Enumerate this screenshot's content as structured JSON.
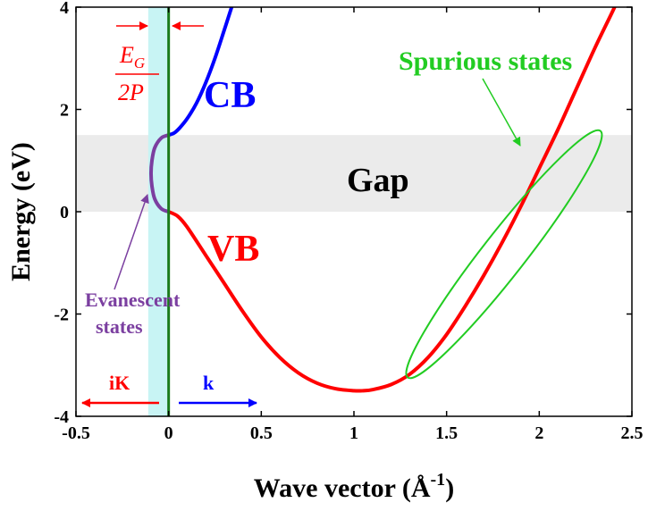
{
  "colors": {
    "cb": "#0000ff",
    "vb": "#ff0000",
    "evanescent": "#7b3fa0",
    "spurious": "#22cc22",
    "gap_fill": "#ebebeb",
    "cyan_band": "#c8f4f4",
    "k_zero_line": "#1a7a1a"
  },
  "chart_data": {
    "type": "line",
    "xlabel_main": "Wave vector (Å",
    "xlabel_sup": "-1",
    "xlabel_close": ")",
    "ylabel": "Energy (eV)",
    "xlim": [
      -0.5,
      2.5
    ],
    "ylim": [
      -4,
      4
    ],
    "x_ticks": [
      -0.5,
      0,
      0.5,
      1,
      1.5,
      2,
      2.5
    ],
    "x_tick_labels": [
      "-0.5",
      "0",
      "0.5",
      "1",
      "1.5",
      "2",
      "2.5"
    ],
    "y_ticks": [
      -4,
      -2,
      0,
      2,
      4
    ],
    "y_tick_labels": [
      "-4",
      "-2",
      "0",
      "2",
      "4"
    ],
    "gap_range": [
      0,
      1.5
    ],
    "cyan_band_range": [
      -0.11,
      0
    ],
    "series": [
      {
        "name": "CB",
        "points": [
          [
            0,
            1.5
          ],
          [
            0.03,
            1.54
          ],
          [
            0.06,
            1.64
          ],
          [
            0.1,
            1.82
          ],
          [
            0.15,
            2.12
          ],
          [
            0.2,
            2.52
          ],
          [
            0.25,
            3.0
          ],
          [
            0.3,
            3.55
          ],
          [
            0.34,
            4.0
          ]
        ]
      },
      {
        "name": "VB",
        "points": [
          [
            0,
            0
          ],
          [
            0.05,
            -0.09
          ],
          [
            0.1,
            -0.3
          ],
          [
            0.2,
            -0.85
          ],
          [
            0.3,
            -1.4
          ],
          [
            0.4,
            -1.95
          ],
          [
            0.5,
            -2.45
          ],
          [
            0.6,
            -2.85
          ],
          [
            0.7,
            -3.15
          ],
          [
            0.8,
            -3.35
          ],
          [
            0.9,
            -3.46
          ],
          [
            1.0,
            -3.5
          ],
          [
            1.05,
            -3.5
          ],
          [
            1.1,
            -3.48
          ],
          [
            1.2,
            -3.38
          ],
          [
            1.3,
            -3.18
          ],
          [
            1.4,
            -2.85
          ],
          [
            1.5,
            -2.4
          ],
          [
            1.6,
            -1.85
          ],
          [
            1.7,
            -1.25
          ],
          [
            1.8,
            -0.6
          ],
          [
            1.9,
            0.1
          ],
          [
            2.0,
            0.85
          ],
          [
            2.1,
            1.6
          ],
          [
            2.2,
            2.4
          ],
          [
            2.3,
            3.2
          ],
          [
            2.4,
            3.95
          ],
          [
            2.45,
            4.35
          ]
        ]
      },
      {
        "name": "Evanescent",
        "points": [
          [
            0,
            0
          ],
          [
            -0.04,
            0.06
          ],
          [
            -0.075,
            0.25
          ],
          [
            -0.09,
            0.5
          ],
          [
            -0.095,
            0.75
          ],
          [
            -0.09,
            1.0
          ],
          [
            -0.075,
            1.25
          ],
          [
            -0.04,
            1.44
          ],
          [
            0,
            1.5
          ]
        ]
      }
    ],
    "spurious_ellipse": {
      "cx": 1.81,
      "cy": -0.83,
      "rx_angle_pts": [
        [
          2.33,
          1.58
        ],
        [
          1.29,
          -3.24
        ]
      ],
      "ry_len": 0.3
    },
    "labels": {
      "cb": "CB",
      "vb": "VB",
      "gap": "Gap",
      "spurious": "Spurious states",
      "evanescent_line1": "Evanescent",
      "evanescent_line2": "states",
      "frac_num": "E",
      "frac_num_sub": "G",
      "frac_den": "2P",
      "ik": "iK",
      "k": "k"
    }
  }
}
